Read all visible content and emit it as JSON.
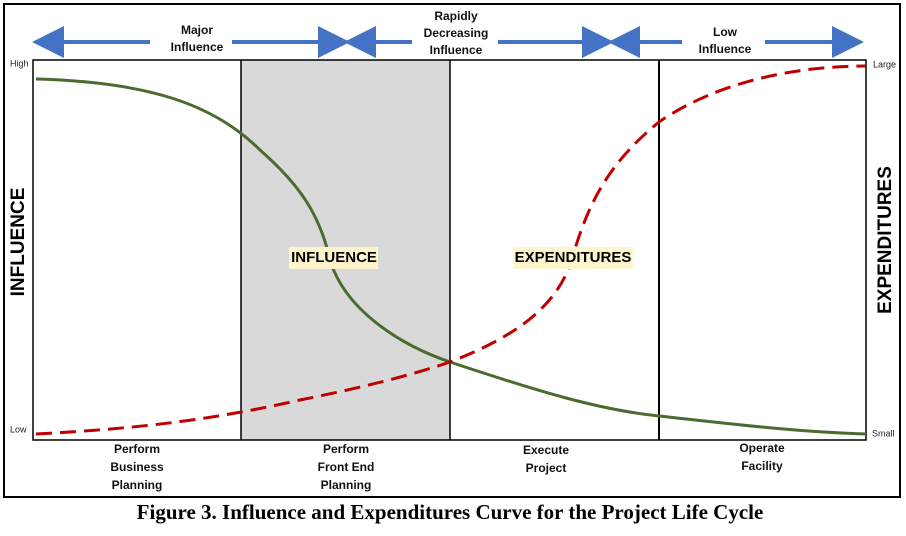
{
  "top_labels": [
    [
      "Major",
      "Influence"
    ],
    [
      "Rapidly",
      "Decreasing",
      "Influence"
    ],
    [
      "Low",
      "Influence"
    ]
  ],
  "left_axis": {
    "title": "INFLUENCE",
    "high": "High",
    "low": "Low"
  },
  "right_axis": {
    "title": "EXPENDITURES",
    "high": "Large",
    "low": "Small"
  },
  "curve_labels": {
    "influence": "INFLUENCE",
    "expenditures": "EXPENDITURES"
  },
  "phases": [
    [
      "Perform",
      "Business",
      "Planning"
    ],
    [
      "Perform",
      "Front End",
      "Planning"
    ],
    [
      "Execute",
      "Project"
    ],
    [
      "Operate",
      "Facility"
    ]
  ],
  "caption": "Figure 3. Influence and Expenditures Curve for the Project Life Cycle"
}
